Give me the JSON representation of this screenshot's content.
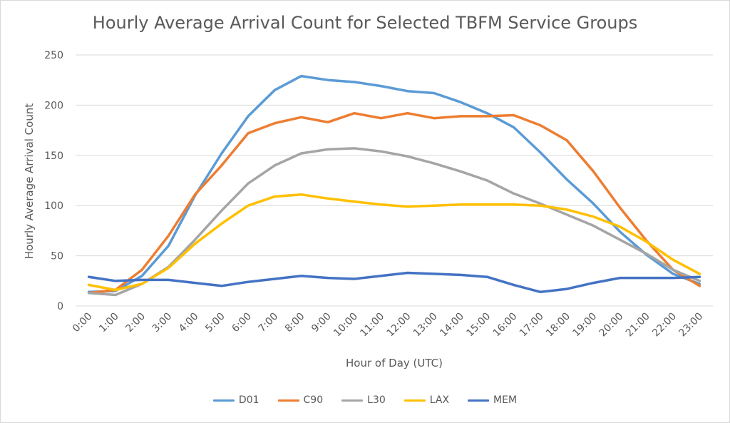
{
  "chart_data": {
    "type": "line",
    "title": "Hourly Average Arrival Count for Selected TBFM Service Groups",
    "xlabel": "Hour of Day (UTC)",
    "ylabel": "Hourly Average Arrival Count",
    "ylim": [
      0,
      250
    ],
    "yticks": [
      0,
      50,
      100,
      150,
      200,
      250
    ],
    "grid": true,
    "legend_position": "bottom",
    "categories": [
      "0:00",
      "1:00",
      "2:00",
      "3:00",
      "4:00",
      "5:00",
      "6:00",
      "7:00",
      "8:00",
      "9:00",
      "10:00",
      "11:00",
      "12:00",
      "13:00",
      "14:00",
      "15:00",
      "16:00",
      "17:00",
      "18:00",
      "19:00",
      "20:00",
      "21:00",
      "22:00",
      "23:00"
    ],
    "series": [
      {
        "name": "D01",
        "color": "#5b9bd5",
        "values": [
          14,
          15,
          30,
          60,
          110,
          152,
          189,
          215,
          229,
          225,
          223,
          219,
          214,
          212,
          203,
          192,
          178,
          153,
          126,
          102,
          74,
          51,
          32,
          22
        ]
      },
      {
        "name": "C90",
        "color": "#ed7d31",
        "values": [
          13,
          16,
          36,
          70,
          111,
          140,
          172,
          182,
          188,
          183,
          192,
          187,
          192,
          187,
          189,
          189,
          190,
          180,
          165,
          134,
          98,
          65,
          36,
          20
        ]
      },
      {
        "name": "L30",
        "color": "#a5a5a5",
        "values": [
          13,
          11,
          22,
          39,
          66,
          95,
          122,
          140,
          152,
          156,
          157,
          154,
          149,
          142,
          134,
          125,
          112,
          102,
          91,
          80,
          66,
          52,
          36,
          25
        ]
      },
      {
        "name": "LAX",
        "color": "#ffc000",
        "values": [
          21,
          16,
          22,
          38,
          62,
          82,
          100,
          109,
          111,
          107,
          104,
          101,
          99,
          100,
          101,
          101,
          101,
          100,
          96,
          89,
          79,
          64,
          46,
          32
        ]
      },
      {
        "name": "MEM",
        "color": "#4472c4",
        "values": [
          29,
          25,
          26,
          26,
          23,
          20,
          24,
          27,
          30,
          28,
          27,
          30,
          33,
          32,
          31,
          29,
          21,
          14,
          17,
          23,
          28,
          28,
          28,
          29
        ]
      }
    ]
  }
}
